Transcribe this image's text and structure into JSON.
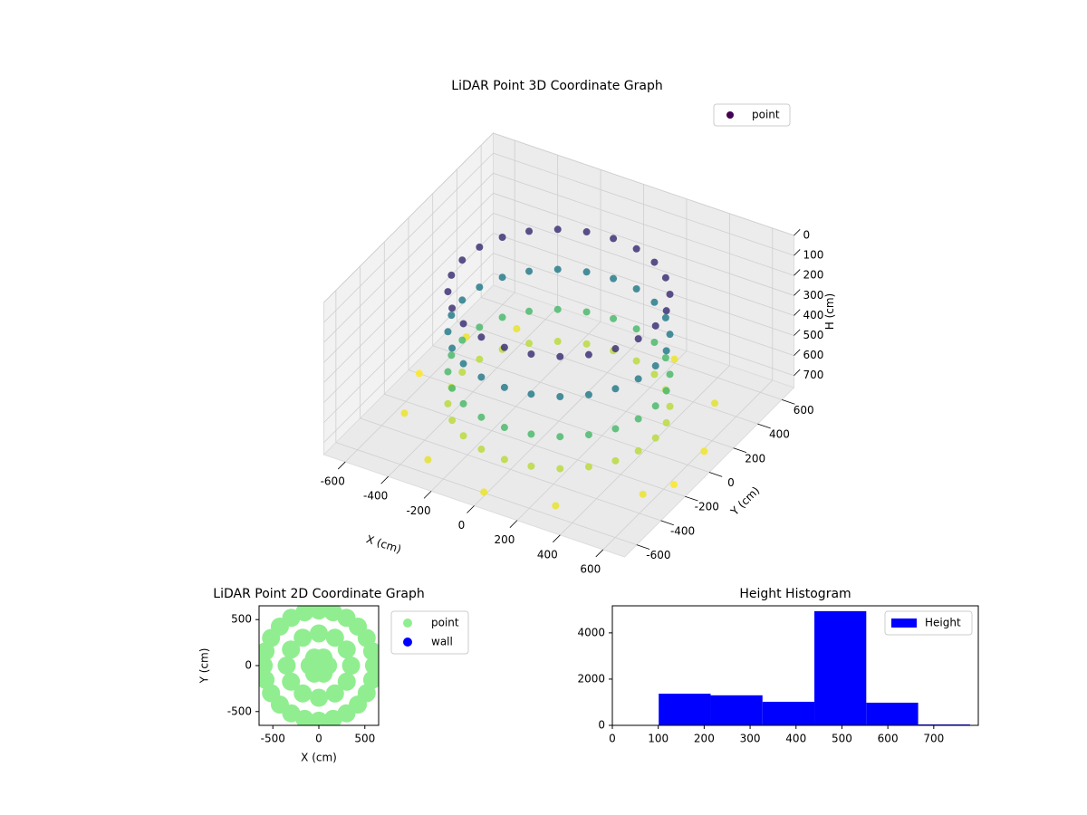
{
  "chart_data": [
    {
      "type": "scatter3d",
      "title": "LiDAR Point 3D Coordinate Graph",
      "xlabel": "X (cm)",
      "ylabel": "Y (cm)",
      "zlabel": "H (cm)",
      "xlim": [
        -700,
        700
      ],
      "ylim": [
        -700,
        700
      ],
      "zlim": [
        760,
        0
      ],
      "xticks": [
        -600,
        -400,
        -200,
        0,
        200,
        400,
        600
      ],
      "yticks": [
        -600,
        -400,
        -200,
        0,
        200,
        400,
        600
      ],
      "zticks": [
        0,
        100,
        200,
        300,
        400,
        500,
        600,
        700
      ],
      "colormap": "viridis",
      "legend": "upper right",
      "grid": true,
      "series": [
        {
          "name": "point",
          "x": [
            -600,
            -550,
            -300,
            0,
            300,
            560,
            620,
            500,
            -450,
            200,
            -650,
            620,
            450,
            435,
            390,
            318,
            225,
            116,
            0,
            -116,
            -225,
            -318,
            -390,
            -435,
            -450,
            -435,
            -390,
            -318,
            -225,
            -116,
            0,
            116,
            225,
            318,
            390,
            435,
            450,
            435,
            390,
            318,
            225,
            116,
            0,
            -116,
            -225,
            -318,
            -390,
            -435,
            -450,
            -435,
            -390,
            -318,
            -225,
            -116,
            0,
            116,
            225,
            318,
            390,
            435,
            450,
            435,
            390,
            318,
            225,
            116,
            0,
            -116,
            -225,
            -318,
            -390,
            -435,
            -450,
            -435,
            -390,
            -318,
            -225,
            -116,
            0,
            116,
            225,
            318,
            390,
            435,
            450,
            435,
            390,
            318,
            225,
            116,
            0,
            -116,
            -225,
            -318,
            -390,
            -435,
            -450,
            -435,
            -390,
            -318,
            -225,
            -116,
            0,
            116,
            225,
            318,
            390,
            435
          ],
          "y": [
            300,
            -300,
            -550,
            -620,
            -560,
            -300,
            100,
            400,
            450,
            600,
            0,
            -150,
            0,
            116,
            225,
            318,
            390,
            435,
            450,
            435,
            390,
            318,
            225,
            116,
            0,
            -116,
            -225,
            -318,
            -390,
            -435,
            -450,
            -435,
            -390,
            -318,
            -225,
            -116,
            0,
            116,
            225,
            318,
            390,
            435,
            450,
            435,
            390,
            318,
            225,
            116,
            0,
            -116,
            -225,
            -318,
            -390,
            -435,
            -450,
            -435,
            -390,
            -318,
            -225,
            -116,
            0,
            116,
            225,
            318,
            390,
            435,
            450,
            435,
            390,
            318,
            225,
            116,
            0,
            -116,
            -225,
            -318,
            -390,
            -435,
            -450,
            -435,
            -390,
            -318,
            -225,
            -116,
            0,
            116,
            225,
            318,
            390,
            435,
            450,
            435,
            390,
            318,
            225,
            116,
            0,
            -116,
            -225,
            -318,
            -390,
            -435,
            -450,
            -435,
            -390,
            -318,
            -225,
            -116
          ],
          "z": [
            740,
            740,
            730,
            740,
            735,
            740,
            745,
            730,
            735,
            740,
            760,
            760,
            680,
            680,
            680,
            680,
            680,
            680,
            680,
            680,
            680,
            680,
            680,
            680,
            680,
            680,
            680,
            680,
            680,
            680,
            680,
            680,
            680,
            680,
            680,
            680,
            520,
            520,
            520,
            520,
            520,
            520,
            520,
            520,
            520,
            520,
            520,
            520,
            520,
            520,
            520,
            520,
            520,
            520,
            520,
            520,
            520,
            520,
            520,
            520,
            320,
            320,
            320,
            320,
            320,
            320,
            320,
            320,
            320,
            320,
            320,
            320,
            320,
            320,
            320,
            320,
            320,
            320,
            320,
            320,
            320,
            320,
            320,
            320,
            120,
            120,
            120,
            120,
            120,
            120,
            120,
            120,
            120,
            120,
            120,
            120,
            120,
            120,
            120,
            120,
            120,
            120,
            120,
            120,
            120,
            120,
            120,
            120
          ]
        }
      ]
    },
    {
      "type": "scatter",
      "title": "LiDAR Point 2D Coordinate Graph",
      "xlabel": "X (cm)",
      "ylabel": "Y (cm)",
      "xlim": [
        -650,
        650
      ],
      "ylim": [
        -650,
        650
      ],
      "xticks": [
        -500,
        0,
        500
      ],
      "yticks": [
        -500,
        0,
        500
      ],
      "legend": "outside right",
      "series": [
        {
          "name": "point",
          "color": "#90ee90",
          "x": [
            600,
            580,
            520,
            424,
            300,
            155,
            0,
            -155,
            -300,
            -424,
            -520,
            -580,
            -600,
            -580,
            -520,
            -424,
            -300,
            -155,
            0,
            155,
            300,
            424,
            520,
            580,
            350,
            303,
            175,
            0,
            -175,
            -303,
            -350,
            -303,
            -175,
            0,
            175,
            303,
            100,
            50,
            -50,
            -100,
            -50,
            50,
            0
          ],
          "y": [
            0,
            155,
            300,
            424,
            520,
            580,
            600,
            580,
            520,
            424,
            300,
            155,
            0,
            -155,
            -300,
            -424,
            -520,
            -580,
            -600,
            -580,
            -520,
            -424,
            -300,
            -155,
            0,
            175,
            303,
            350,
            303,
            175,
            0,
            -175,
            -303,
            -350,
            -303,
            -175,
            0,
            87,
            87,
            0,
            -87,
            -87,
            0
          ]
        },
        {
          "name": "wall",
          "color": "#0000ff",
          "x": [],
          "y": []
        }
      ]
    },
    {
      "type": "histogram",
      "title": "Height Histogram",
      "xlim": [
        0,
        797
      ],
      "ylim": [
        0,
        5170
      ],
      "xticks": [
        0,
        100,
        200,
        300,
        400,
        500,
        600,
        700
      ],
      "yticks": [
        0,
        2000,
        4000
      ],
      "legend": "upper right",
      "series": [
        {
          "name": "Height",
          "color": "#0000ff",
          "bins": [
            101,
            214,
            327,
            440,
            553,
            666,
            779
          ],
          "values": [
            1370,
            1300,
            1020,
            4940,
            980,
            40
          ]
        }
      ]
    }
  ]
}
